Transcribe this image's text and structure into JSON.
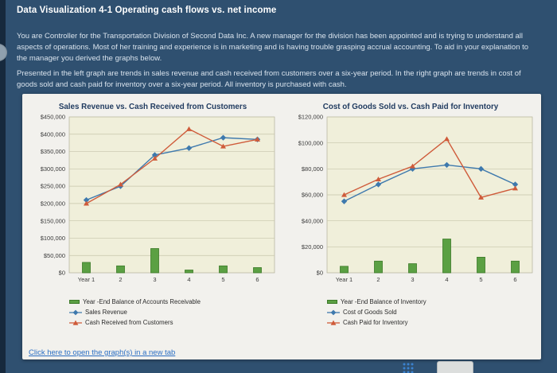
{
  "page": {
    "title": "Data Visualization 4-1 Operating cash flows vs. net income",
    "paragraphs": [
      "You are Controller for the Transportation Division of Second Data Inc. A new manager for the division has been appointed and is trying to understand all aspects of operations. Most of her training and experience is in marketing and is having trouble grasping accrual accounting. To aid in your explanation to the manager you derived the graphs below.",
      "Presented in the left graph are trends in sales revenue and cash received from customers over a six-year period. In the right graph are trends in cost of goods sold and cash paid for inventory over a six-year period. All inventory is purchased with cash."
    ],
    "footer_link": "Click here to open the graph(s) in a new tab"
  },
  "colors": {
    "page_background": "#2f5070",
    "panel_background": "#f2f1ed",
    "plot_background": "#f0efda",
    "plot_border": "#b1b09a",
    "grid": "#c6c5ab",
    "bar_green": "#5ba043",
    "bar_border": "#3c7a28",
    "line_blue": "#3e79ad",
    "line_orange": "#cf5b3a",
    "link_blue": "#2c6fc4",
    "axis_text": "#3a3a3a"
  },
  "chart_data": [
    {
      "type": "bar",
      "subtype": "combo-bar-line",
      "title": "Sales Revenue vs. Cash Received from Customers",
      "categories": [
        "Year 1",
        "2",
        "3",
        "4",
        "5",
        "6"
      ],
      "xlabel": "",
      "ylabel": "",
      "ylim": [
        0,
        450000
      ],
      "yticks": [
        0,
        50000,
        100000,
        150000,
        200000,
        250000,
        300000,
        350000,
        400000,
        450000
      ],
      "ytick_labels": [
        "$0",
        "$50,000",
        "$100,000",
        "$150,000",
        "$200,000",
        "$250,000",
        "$300,000",
        "$350,000",
        "$400,000",
        "$450,000"
      ],
      "grid": true,
      "legend_position": "bottom",
      "series": [
        {
          "name": "Year -End Balance of Accounts Receivable",
          "type": "bar",
          "color": "#5ba043",
          "border": "#3c7a28",
          "values": [
            30000,
            20000,
            70000,
            8000,
            20000,
            15000
          ]
        },
        {
          "name": "Sales Revenue",
          "type": "line",
          "marker": "diamond",
          "color": "#3e79ad",
          "values": [
            210000,
            250000,
            340000,
            360000,
            390000,
            385000
          ]
        },
        {
          "name": "Cash Received from Customers",
          "type": "line",
          "marker": "triangle",
          "color": "#cf5b3a",
          "values": [
            200000,
            255000,
            330000,
            415000,
            365000,
            385000
          ]
        }
      ]
    },
    {
      "type": "bar",
      "subtype": "combo-bar-line",
      "title": "Cost of Goods Sold vs. Cash Paid for Inventory",
      "categories": [
        "Year 1",
        "2",
        "3",
        "4",
        "5",
        "6"
      ],
      "xlabel": "",
      "ylabel": "",
      "ylim": [
        0,
        120000
      ],
      "yticks": [
        0,
        20000,
        40000,
        60000,
        80000,
        100000,
        120000
      ],
      "ytick_labels": [
        "$0",
        "$20,000",
        "$40,000",
        "$60,000",
        "$80,000",
        "$100,000",
        "$120,000"
      ],
      "grid": true,
      "legend_position": "bottom",
      "series": [
        {
          "name": "Year -End Balance of Inventory",
          "type": "bar",
          "color": "#5ba043",
          "border": "#3c7a28",
          "values": [
            5000,
            9000,
            7000,
            26000,
            12000,
            9000
          ]
        },
        {
          "name": "Cost of Goods Sold",
          "type": "line",
          "marker": "diamond",
          "color": "#3e79ad",
          "values": [
            55000,
            68000,
            80000,
            83000,
            80000,
            68000
          ]
        },
        {
          "name": "Cash Paid for Inventory",
          "type": "line",
          "marker": "triangle",
          "color": "#cf5b3a",
          "values": [
            60000,
            72000,
            82000,
            103000,
            58000,
            65000
          ]
        }
      ]
    }
  ]
}
